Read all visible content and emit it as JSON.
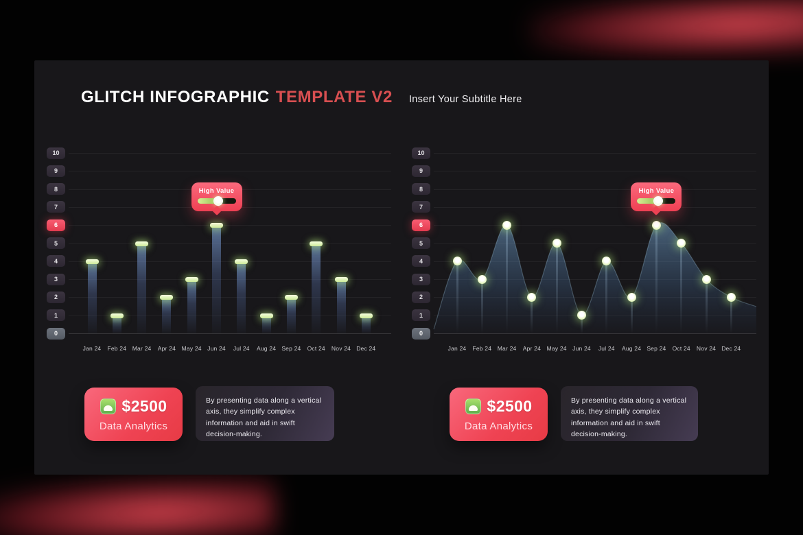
{
  "header": {
    "title_main": "GLITCH INFOGRAPHIC",
    "title_accent": "TEMPLATE V2",
    "subtitle": "Insert Your Subtitle Here"
  },
  "colors": {
    "accent_red": "#ee4053",
    "highlight_pill": "#ef4053",
    "glow_green_cap": "#d6f2a0",
    "area_blue": "#4a7296",
    "panel_bg": "#18171a"
  },
  "chart_data": [
    {
      "type": "bar",
      "title": "",
      "xlabel": "",
      "ylabel": "",
      "categories": [
        "Jan 24",
        "Feb 24",
        "Mar 24",
        "Apr 24",
        "May 24",
        "Jun 24",
        "Jul 24",
        "Aug 24",
        "Sep 24",
        "Oct 24",
        "Nov 24",
        "Dec 24"
      ],
      "values": [
        4,
        1,
        5,
        2,
        3,
        6,
        4,
        1,
        2,
        5,
        3,
        1
      ],
      "ylim": [
        0,
        10
      ],
      "y_ticks": [
        10,
        9,
        8,
        7,
        6,
        5,
        4,
        3,
        2,
        1,
        0
      ],
      "grid": true,
      "legend": "none",
      "highlight_value": 6,
      "highlight_category": "Jun 24",
      "tooltip_label": "High Value",
      "tooltip_slider_pct": 55
    },
    {
      "type": "area",
      "title": "",
      "xlabel": "",
      "ylabel": "",
      "categories": [
        "Jan 24",
        "Feb 24",
        "Mar 24",
        "Apr 24",
        "May 24",
        "Jun 24",
        "Jul 24",
        "Aug 24",
        "Sep 24",
        "Oct 24",
        "Nov 24",
        "Dec 24"
      ],
      "values": [
        4,
        3,
        6,
        2,
        5,
        1,
        4,
        2,
        6,
        5,
        3,
        2
      ],
      "ylim": [
        0,
        10
      ],
      "y_ticks": [
        10,
        9,
        8,
        7,
        6,
        5,
        4,
        3,
        2,
        1,
        0
      ],
      "grid": true,
      "legend": "none",
      "highlight_value": 6,
      "highlight_category": "Sep 24",
      "tooltip_label": "High Value",
      "tooltip_slider_pct": 55
    }
  ],
  "cards": [
    {
      "price": "$2500",
      "label": "Data Analytics",
      "icon": "mountain-icon",
      "description": "By presenting data along a vertical axis, they simplify complex information and aid in swift decision-making."
    },
    {
      "price": "$2500",
      "label": "Data Analytics",
      "icon": "mountain-icon",
      "description": "By presenting data along a vertical axis, they simplify complex information and aid in swift decision-making."
    }
  ]
}
